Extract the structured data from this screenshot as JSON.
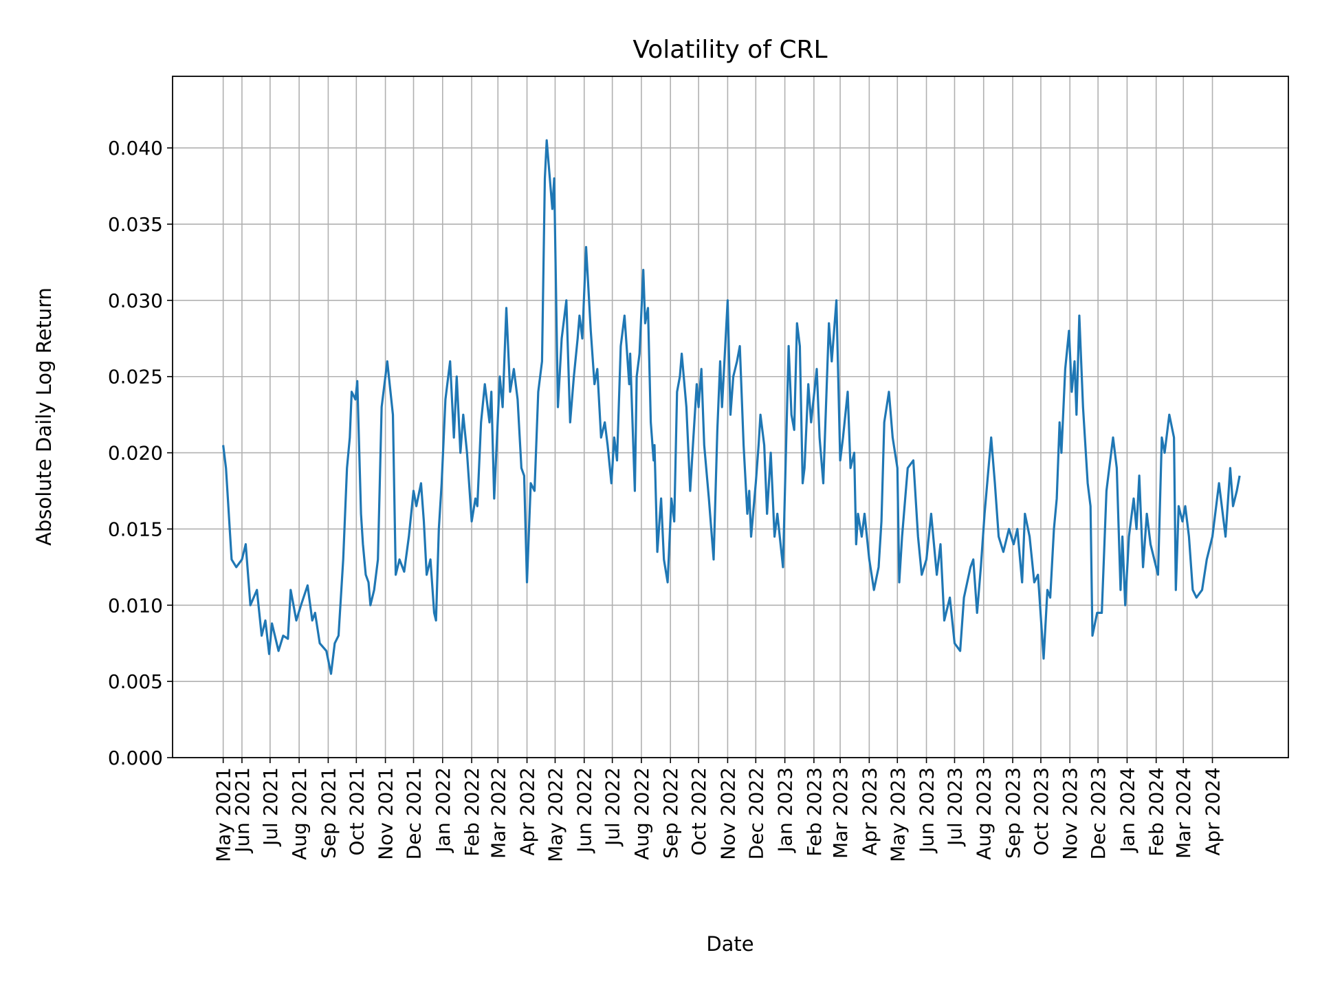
{
  "chart_data": {
    "type": "line",
    "title": "Volatility of CRL",
    "xlabel": "Date",
    "ylabel": "Absolute Daily Log Return",
    "xlim": [
      "2021-03-19",
      "2024-06-21"
    ],
    "ylim": [
      0,
      0.0447
    ],
    "grid": true,
    "line_color": "#1f77b4",
    "grid_color": "#b0b0b0",
    "yticks": [
      0.0,
      0.005,
      0.01,
      0.015,
      0.02,
      0.025,
      0.03,
      0.035,
      0.04
    ],
    "ytick_labels": [
      "0.000",
      "0.005",
      "0.010",
      "0.015",
      "0.020",
      "0.025",
      "0.030",
      "0.035",
      "0.040"
    ],
    "xticks": [
      {
        "date": "2021-05-12",
        "label": "May 2021"
      },
      {
        "date": "2021-06-01",
        "label": "Jun 2021"
      },
      {
        "date": "2021-07-01",
        "label": "Jul 2021"
      },
      {
        "date": "2021-08-01",
        "label": "Aug 2021"
      },
      {
        "date": "2021-09-01",
        "label": "Sep 2021"
      },
      {
        "date": "2021-10-01",
        "label": "Oct 2021"
      },
      {
        "date": "2021-11-01",
        "label": "Nov 2021"
      },
      {
        "date": "2021-12-01",
        "label": "Dec 2021"
      },
      {
        "date": "2022-01-01",
        "label": "Jan 2022"
      },
      {
        "date": "2022-02-01",
        "label": "Feb 2022"
      },
      {
        "date": "2022-03-01",
        "label": "Mar 2022"
      },
      {
        "date": "2022-04-01",
        "label": "Apr 2022"
      },
      {
        "date": "2022-05-01",
        "label": "May 2022"
      },
      {
        "date": "2022-06-01",
        "label": "Jun 2022"
      },
      {
        "date": "2022-07-01",
        "label": "Jul 2022"
      },
      {
        "date": "2022-08-01",
        "label": "Aug 2022"
      },
      {
        "date": "2022-09-01",
        "label": "Sep 2022"
      },
      {
        "date": "2022-10-01",
        "label": "Oct 2022"
      },
      {
        "date": "2022-11-01",
        "label": "Nov 2022"
      },
      {
        "date": "2022-12-01",
        "label": "Dec 2022"
      },
      {
        "date": "2023-01-01",
        "label": "Jan 2023"
      },
      {
        "date": "2023-02-01",
        "label": "Feb 2023"
      },
      {
        "date": "2023-03-01",
        "label": "Mar 2023"
      },
      {
        "date": "2023-04-01",
        "label": "Apr 2023"
      },
      {
        "date": "2023-05-01",
        "label": "May 2023"
      },
      {
        "date": "2023-06-01",
        "label": "Jun 2023"
      },
      {
        "date": "2023-07-01",
        "label": "Jul 2023"
      },
      {
        "date": "2023-08-01",
        "label": "Aug 2023"
      },
      {
        "date": "2023-09-01",
        "label": "Sep 2023"
      },
      {
        "date": "2023-10-01",
        "label": "Oct 2023"
      },
      {
        "date": "2023-11-01",
        "label": "Nov 2023"
      },
      {
        "date": "2023-12-01",
        "label": "Dec 2023"
      },
      {
        "date": "2024-01-01",
        "label": "Jan 2024"
      },
      {
        "date": "2024-02-01",
        "label": "Feb 2024"
      },
      {
        "date": "2024-03-01",
        "label": "Mar 2024"
      },
      {
        "date": "2024-04-01",
        "label": "Apr 2024"
      }
    ],
    "points": [
      [
        "2021-05-12",
        0.0205
      ],
      [
        "2021-05-15",
        0.019
      ],
      [
        "2021-05-21",
        0.013
      ],
      [
        "2021-05-26",
        0.0125
      ],
      [
        "2021-06-01",
        0.013
      ],
      [
        "2021-06-05",
        0.014
      ],
      [
        "2021-06-10",
        0.01
      ],
      [
        "2021-06-17",
        0.011
      ],
      [
        "2021-06-22",
        0.008
      ],
      [
        "2021-06-26",
        0.009
      ],
      [
        "2021-06-30",
        0.0068
      ],
      [
        "2021-07-03",
        0.0088
      ],
      [
        "2021-07-10",
        0.007
      ],
      [
        "2021-07-15",
        0.008
      ],
      [
        "2021-07-20",
        0.0078
      ],
      [
        "2021-07-23",
        0.011
      ],
      [
        "2021-07-29",
        0.009
      ],
      [
        "2021-08-03",
        0.01
      ],
      [
        "2021-08-10",
        0.0113
      ],
      [
        "2021-08-15",
        0.009
      ],
      [
        "2021-08-18",
        0.0095
      ],
      [
        "2021-08-23",
        0.0075
      ],
      [
        "2021-08-30",
        0.007
      ],
      [
        "2021-09-04",
        0.0055
      ],
      [
        "2021-09-08",
        0.0075
      ],
      [
        "2021-09-12",
        0.008
      ],
      [
        "2021-09-15",
        0.011
      ],
      [
        "2021-09-17",
        0.013
      ],
      [
        "2021-09-21",
        0.019
      ],
      [
        "2021-09-24",
        0.021
      ],
      [
        "2021-09-26",
        0.024
      ],
      [
        "2021-09-30",
        0.0235
      ],
      [
        "2021-10-02",
        0.0247
      ],
      [
        "2021-10-06",
        0.016
      ],
      [
        "2021-10-08",
        0.014
      ],
      [
        "2021-10-11",
        0.012
      ],
      [
        "2021-10-14",
        0.0115
      ],
      [
        "2021-10-16",
        0.01
      ],
      [
        "2021-10-20",
        0.011
      ],
      [
        "2021-10-24",
        0.013
      ],
      [
        "2021-10-28",
        0.023
      ],
      [
        "2021-10-31",
        0.0245
      ],
      [
        "2021-11-03",
        0.026
      ],
      [
        "2021-11-09",
        0.0225
      ],
      [
        "2021-11-12",
        0.012
      ],
      [
        "2021-11-16",
        0.013
      ],
      [
        "2021-11-21",
        0.0122
      ],
      [
        "2021-11-26",
        0.0145
      ],
      [
        "2021-12-01",
        0.0175
      ],
      [
        "2021-12-04",
        0.0165
      ],
      [
        "2021-12-09",
        0.018
      ],
      [
        "2021-12-12",
        0.0155
      ],
      [
        "2021-12-15",
        0.012
      ],
      [
        "2021-12-19",
        0.013
      ],
      [
        "2021-12-23",
        0.0095
      ],
      [
        "2021-12-25",
        0.009
      ],
      [
        "2021-12-28",
        0.015
      ],
      [
        "2021-12-31",
        0.018
      ],
      [
        "2022-01-04",
        0.0235
      ],
      [
        "2022-01-09",
        0.026
      ],
      [
        "2022-01-13",
        0.021
      ],
      [
        "2022-01-16",
        0.025
      ],
      [
        "2022-01-20",
        0.02
      ],
      [
        "2022-01-23",
        0.0225
      ],
      [
        "2022-01-27",
        0.02
      ],
      [
        "2022-02-01",
        0.0155
      ],
      [
        "2022-02-05",
        0.017
      ],
      [
        "2022-02-07",
        0.0165
      ],
      [
        "2022-02-11",
        0.022
      ],
      [
        "2022-02-15",
        0.0245
      ],
      [
        "2022-02-20",
        0.022
      ],
      [
        "2022-02-22",
        0.024
      ],
      [
        "2022-02-25",
        0.017
      ],
      [
        "2022-03-03",
        0.025
      ],
      [
        "2022-03-06",
        0.023
      ],
      [
        "2022-03-10",
        0.0295
      ],
      [
        "2022-03-14",
        0.024
      ],
      [
        "2022-03-18",
        0.0255
      ],
      [
        "2022-03-22",
        0.0235
      ],
      [
        "2022-03-26",
        0.019
      ],
      [
        "2022-03-29",
        0.0185
      ],
      [
        "2022-04-01",
        0.0115
      ],
      [
        "2022-04-05",
        0.018
      ],
      [
        "2022-04-09",
        0.0175
      ],
      [
        "2022-04-13",
        0.024
      ],
      [
        "2022-04-17",
        0.026
      ],
      [
        "2022-04-20",
        0.038
      ],
      [
        "2022-04-22",
        0.0405
      ],
      [
        "2022-04-28",
        0.036
      ],
      [
        "2022-04-30",
        0.038
      ],
      [
        "2022-05-04",
        0.023
      ],
      [
        "2022-05-08",
        0.0275
      ],
      [
        "2022-05-13",
        0.03
      ],
      [
        "2022-05-17",
        0.022
      ],
      [
        "2022-05-21",
        0.025
      ],
      [
        "2022-05-25",
        0.0275
      ],
      [
        "2022-05-27",
        0.029
      ],
      [
        "2022-05-30",
        0.0275
      ],
      [
        "2022-06-03",
        0.0335
      ],
      [
        "2022-06-08",
        0.028
      ],
      [
        "2022-06-12",
        0.0245
      ],
      [
        "2022-06-15",
        0.0255
      ],
      [
        "2022-06-19",
        0.021
      ],
      [
        "2022-06-23",
        0.022
      ],
      [
        "2022-06-26",
        0.0205
      ],
      [
        "2022-06-30",
        0.018
      ],
      [
        "2022-07-03",
        0.021
      ],
      [
        "2022-07-06",
        0.0195
      ],
      [
        "2022-07-10",
        0.027
      ],
      [
        "2022-07-14",
        0.029
      ],
      [
        "2022-07-19",
        0.0245
      ],
      [
        "2022-07-20",
        0.0265
      ],
      [
        "2022-07-25",
        0.0175
      ],
      [
        "2022-07-27",
        0.025
      ],
      [
        "2022-07-30",
        0.0265
      ],
      [
        "2022-08-03",
        0.032
      ],
      [
        "2022-08-05",
        0.0285
      ],
      [
        "2022-08-08",
        0.0295
      ],
      [
        "2022-08-11",
        0.022
      ],
      [
        "2022-08-14",
        0.0195
      ],
      [
        "2022-08-15",
        0.0205
      ],
      [
        "2022-08-18",
        0.0135
      ],
      [
        "2022-08-22",
        0.017
      ],
      [
        "2022-08-25",
        0.013
      ],
      [
        "2022-08-29",
        0.0115
      ],
      [
        "2022-09-02",
        0.017
      ],
      [
        "2022-09-05",
        0.0155
      ],
      [
        "2022-09-08",
        0.024
      ],
      [
        "2022-09-11",
        0.025
      ],
      [
        "2022-09-13",
        0.0265
      ],
      [
        "2022-09-18",
        0.023
      ],
      [
        "2022-09-22",
        0.0175
      ],
      [
        "2022-09-25",
        0.0205
      ],
      [
        "2022-09-29",
        0.0245
      ],
      [
        "2022-10-01",
        0.023
      ],
      [
        "2022-10-04",
        0.0255
      ],
      [
        "2022-10-07",
        0.0205
      ],
      [
        "2022-10-12",
        0.017
      ],
      [
        "2022-10-17",
        0.013
      ],
      [
        "2022-10-21",
        0.0215
      ],
      [
        "2022-10-24",
        0.026
      ],
      [
        "2022-10-26",
        0.023
      ],
      [
        "2022-10-29",
        0.0265
      ],
      [
        "2022-11-01",
        0.03
      ],
      [
        "2022-11-04",
        0.0225
      ],
      [
        "2022-11-07",
        0.025
      ],
      [
        "2022-11-11",
        0.026
      ],
      [
        "2022-11-14",
        0.027
      ],
      [
        "2022-11-18",
        0.0205
      ],
      [
        "2022-11-22",
        0.016
      ],
      [
        "2022-11-24",
        0.0175
      ],
      [
        "2022-11-26",
        0.0145
      ],
      [
        "2022-12-01",
        0.018
      ],
      [
        "2022-12-04",
        0.0205
      ],
      [
        "2022-12-06",
        0.0225
      ],
      [
        "2022-12-10",
        0.0205
      ],
      [
        "2022-12-13",
        0.016
      ],
      [
        "2022-12-17",
        0.02
      ],
      [
        "2022-12-21",
        0.0145
      ],
      [
        "2022-12-24",
        0.016
      ],
      [
        "2022-12-30",
        0.0125
      ],
      [
        "2023-01-05",
        0.027
      ],
      [
        "2023-01-08",
        0.0225
      ],
      [
        "2023-01-11",
        0.0215
      ],
      [
        "2023-01-14",
        0.0285
      ],
      [
        "2023-01-17",
        0.027
      ],
      [
        "2023-01-20",
        0.018
      ],
      [
        "2023-01-22",
        0.019
      ],
      [
        "2023-01-26",
        0.0245
      ],
      [
        "2023-01-29",
        0.022
      ],
      [
        "2023-02-04",
        0.0255
      ],
      [
        "2023-02-07",
        0.021
      ],
      [
        "2023-02-11",
        0.018
      ],
      [
        "2023-02-17",
        0.0285
      ],
      [
        "2023-02-20",
        0.026
      ],
      [
        "2023-02-25",
        0.03
      ],
      [
        "2023-03-01",
        0.0195
      ],
      [
        "2023-03-04",
        0.021
      ],
      [
        "2023-03-09",
        0.024
      ],
      [
        "2023-03-12",
        0.019
      ],
      [
        "2023-03-16",
        0.02
      ],
      [
        "2023-03-18",
        0.014
      ],
      [
        "2023-03-20",
        0.016
      ],
      [
        "2023-03-24",
        0.0145
      ],
      [
        "2023-03-27",
        0.016
      ],
      [
        "2023-04-01",
        0.013
      ],
      [
        "2023-04-06",
        0.011
      ],
      [
        "2023-04-11",
        0.0125
      ],
      [
        "2023-04-14",
        0.0155
      ],
      [
        "2023-04-17",
        0.022
      ],
      [
        "2023-04-22",
        0.024
      ],
      [
        "2023-04-26",
        0.021
      ],
      [
        "2023-05-01",
        0.019
      ],
      [
        "2023-05-03",
        0.0115
      ],
      [
        "2023-05-06",
        0.0145
      ],
      [
        "2023-05-12",
        0.019
      ],
      [
        "2023-05-18",
        0.0195
      ],
      [
        "2023-05-23",
        0.0145
      ],
      [
        "2023-05-27",
        0.012
      ],
      [
        "2023-06-01",
        0.013
      ],
      [
        "2023-06-06",
        0.016
      ],
      [
        "2023-06-12",
        0.012
      ],
      [
        "2023-06-16",
        0.014
      ],
      [
        "2023-06-20",
        0.009
      ],
      [
        "2023-06-26",
        0.0105
      ],
      [
        "2023-07-01",
        0.0075
      ],
      [
        "2023-07-07",
        0.007
      ],
      [
        "2023-07-11",
        0.0105
      ],
      [
        "2023-07-18",
        0.0125
      ],
      [
        "2023-07-21",
        0.013
      ],
      [
        "2023-07-25",
        0.0095
      ],
      [
        "2023-07-29",
        0.0125
      ],
      [
        "2023-08-02",
        0.016
      ],
      [
        "2023-08-09",
        0.021
      ],
      [
        "2023-08-13",
        0.018
      ],
      [
        "2023-08-17",
        0.0145
      ],
      [
        "2023-08-22",
        0.0135
      ],
      [
        "2023-08-28",
        0.015
      ],
      [
        "2023-09-02",
        0.014
      ],
      [
        "2023-09-06",
        0.015
      ],
      [
        "2023-09-11",
        0.0115
      ],
      [
        "2023-09-14",
        0.016
      ],
      [
        "2023-09-19",
        0.0145
      ],
      [
        "2023-09-24",
        0.0115
      ],
      [
        "2023-09-28",
        0.012
      ],
      [
        "2023-10-04",
        0.0065
      ],
      [
        "2023-10-08",
        0.011
      ],
      [
        "2023-10-11",
        0.0105
      ],
      [
        "2023-10-15",
        0.015
      ],
      [
        "2023-10-18",
        0.017
      ],
      [
        "2023-10-21",
        0.022
      ],
      [
        "2023-10-23",
        0.02
      ],
      [
        "2023-10-27",
        0.0255
      ],
      [
        "2023-10-31",
        0.028
      ],
      [
        "2023-11-03",
        0.024
      ],
      [
        "2023-11-06",
        0.026
      ],
      [
        "2023-11-08",
        0.0225
      ],
      [
        "2023-11-11",
        0.029
      ],
      [
        "2023-11-15",
        0.023
      ],
      [
        "2023-11-20",
        0.018
      ],
      [
        "2023-11-23",
        0.0165
      ],
      [
        "2023-11-25",
        0.008
      ],
      [
        "2023-11-30",
        0.0095
      ],
      [
        "2023-12-05",
        0.0095
      ],
      [
        "2023-12-10",
        0.0175
      ],
      [
        "2023-12-12",
        0.0185
      ],
      [
        "2023-12-17",
        0.021
      ],
      [
        "2023-12-21",
        0.019
      ],
      [
        "2023-12-25",
        0.011
      ],
      [
        "2023-12-27",
        0.0145
      ],
      [
        "2023-12-30",
        0.01
      ],
      [
        "2024-01-03",
        0.0145
      ],
      [
        "2024-01-08",
        0.017
      ],
      [
        "2024-01-11",
        0.015
      ],
      [
        "2024-01-14",
        0.0185
      ],
      [
        "2024-01-18",
        0.0125
      ],
      [
        "2024-01-22",
        0.016
      ],
      [
        "2024-01-26",
        0.014
      ],
      [
        "2024-02-03",
        0.012
      ],
      [
        "2024-02-07",
        0.021
      ],
      [
        "2024-02-10",
        0.02
      ],
      [
        "2024-02-15",
        0.0225
      ],
      [
        "2024-02-20",
        0.021
      ],
      [
        "2024-02-22",
        0.011
      ],
      [
        "2024-02-25",
        0.0165
      ],
      [
        "2024-02-29",
        0.0155
      ],
      [
        "2024-03-03",
        0.0165
      ],
      [
        "2024-03-07",
        0.0145
      ],
      [
        "2024-03-11",
        0.011
      ],
      [
        "2024-03-15",
        0.0105
      ],
      [
        "2024-03-21",
        0.011
      ],
      [
        "2024-03-26",
        0.013
      ],
      [
        "2024-04-01",
        0.0145
      ],
      [
        "2024-04-04",
        0.016
      ],
      [
        "2024-04-08",
        0.018
      ],
      [
        "2024-04-15",
        0.0145
      ],
      [
        "2024-04-20",
        0.019
      ],
      [
        "2024-04-23",
        0.0165
      ],
      [
        "2024-04-27",
        0.0175
      ],
      [
        "2024-04-30",
        0.0185
      ]
    ]
  }
}
